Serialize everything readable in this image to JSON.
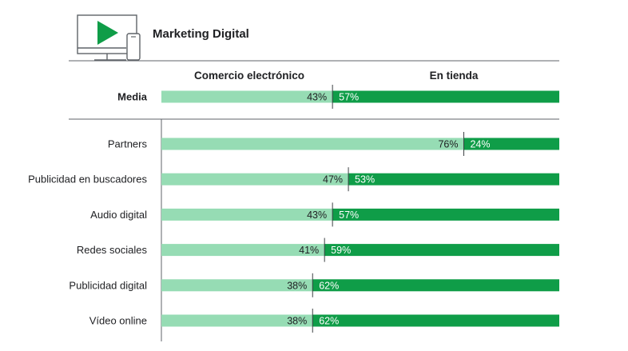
{
  "header": {
    "title": "Marketing Digital",
    "icon": "monitor-phone-play-icon"
  },
  "colors": {
    "ecommerce": "#96dcb4",
    "store": "#0f9d48",
    "text": "#202124",
    "rule": "#5f6368"
  },
  "chart_data": {
    "type": "bar",
    "stacked": true,
    "orientation": "horizontal",
    "series_headers": [
      "Comercio electrónico",
      "En tienda"
    ],
    "average": {
      "label": "Media",
      "ecommerce": 43,
      "store": 57
    },
    "categories": [
      "Partners",
      "Publicidad en buscadores",
      "Audio digital",
      "Redes sociales",
      "Publicidad digital",
      "Vídeo online"
    ],
    "series": [
      {
        "name": "Comercio electrónico",
        "values": [
          76,
          47,
          43,
          41,
          38,
          38
        ]
      },
      {
        "name": "En tienda",
        "values": [
          24,
          53,
          57,
          59,
          62,
          62
        ]
      }
    ],
    "unit": "%"
  }
}
